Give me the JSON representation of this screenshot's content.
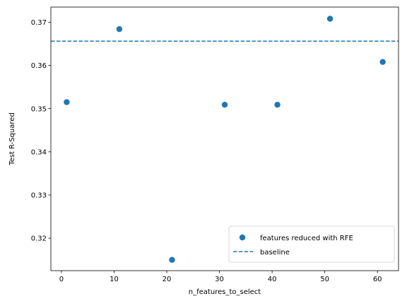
{
  "chart_data": {
    "type": "scatter",
    "xlabel": "n_features_to_select",
    "ylabel": "Test R-Squared",
    "xlim": [
      -2.0,
      64.0
    ],
    "ylim": [
      0.3125,
      0.3735
    ],
    "xticks": [
      0,
      10,
      20,
      30,
      40,
      50,
      60
    ],
    "xtick_labels": [
      "0",
      "10",
      "20",
      "30",
      "40",
      "50",
      "60"
    ],
    "yticks": [
      0.32,
      0.33,
      0.34,
      0.35,
      0.36,
      0.37
    ],
    "ytick_labels": [
      "0.32",
      "0.33",
      "0.34",
      "0.35",
      "0.36",
      "0.37"
    ],
    "grid": false,
    "series": [
      {
        "name": "features reduced with RFE",
        "kind": "scatter",
        "color": "#1f77b4",
        "x": [
          1,
          11,
          21,
          31,
          41,
          51,
          61
        ],
        "y": [
          0.3515,
          0.3684,
          0.315,
          0.3509,
          0.3509,
          0.3708,
          0.3608
        ]
      },
      {
        "name": "baseline",
        "kind": "hline",
        "color": "#1f77b4",
        "linestyle": "dashed",
        "y": 0.3656
      }
    ],
    "legend": {
      "location": "lower-right",
      "entries": [
        "features reduced with RFE",
        "baseline"
      ]
    }
  }
}
